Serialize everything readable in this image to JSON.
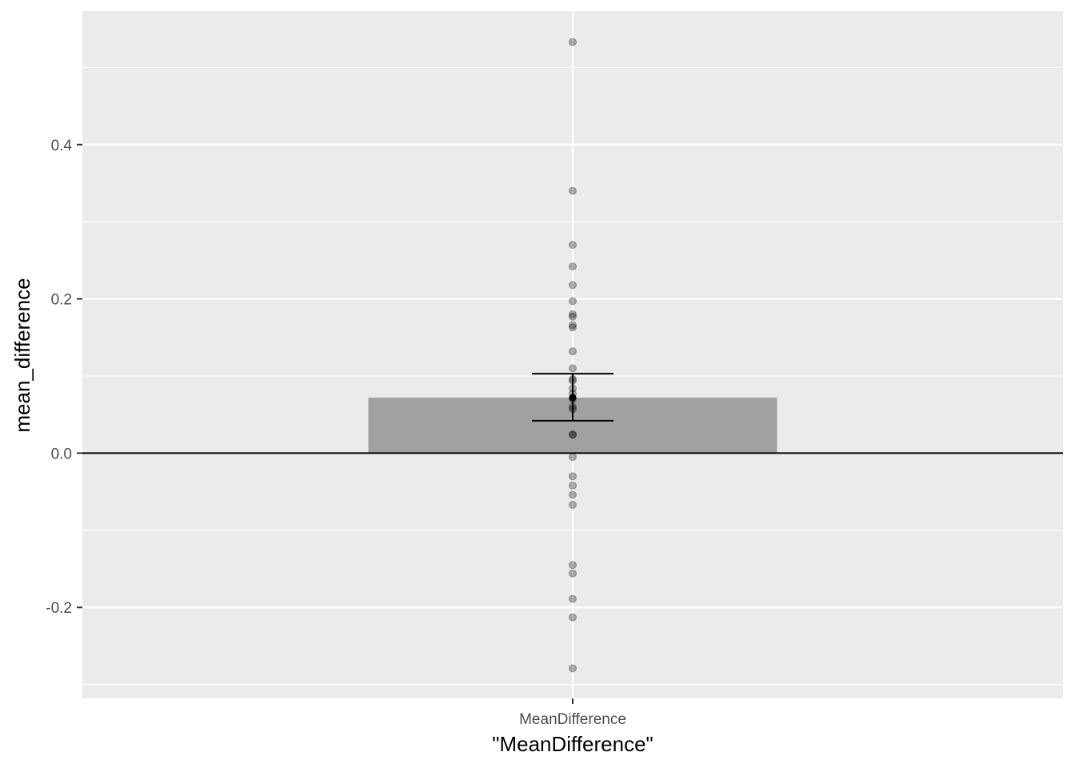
{
  "chart_data": {
    "type": "bar",
    "categories": [
      "MeanDifference"
    ],
    "values": [
      0.072
    ],
    "error_bar": {
      "lower": 0.042,
      "upper": 0.103
    },
    "mean_point": 0.072,
    "points_x": "MeanDifference",
    "points": [
      0.533,
      0.34,
      0.27,
      0.242,
      0.218,
      0.197,
      0.18,
      0.177,
      0.166,
      0.163,
      0.132,
      0.11,
      0.096,
      0.094,
      0.084,
      0.077,
      0.07,
      0.06,
      0.057,
      0.024,
      0.024,
      -0.005,
      -0.03,
      -0.042,
      -0.054,
      -0.067,
      -0.145,
      -0.156,
      -0.189,
      -0.213,
      -0.279
    ],
    "xlabel": "\"MeanDifference\"",
    "ylabel": "mean_difference",
    "ylim": [
      -0.318,
      0.573
    ],
    "y_ticks": [
      -0.2,
      0.0,
      0.2,
      0.4
    ],
    "y_tick_labels": [
      "-0.2",
      "0.0",
      "0.2",
      "0.4"
    ],
    "y_minor_ticks": [
      -0.3,
      -0.1,
      0.1,
      0.3,
      0.5
    ],
    "hline": 0,
    "grid": true,
    "colors": {
      "panel": "#ebebeb",
      "grid": "#ffffff",
      "bar": "#a1a1a1",
      "points": "#000000",
      "error_bar": "#000000"
    }
  }
}
